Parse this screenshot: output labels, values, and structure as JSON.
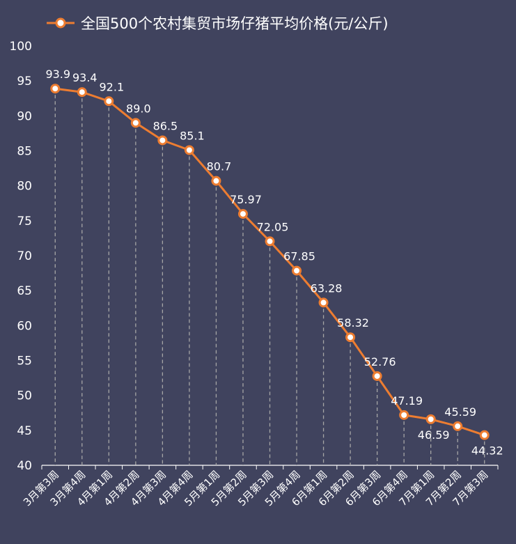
{
  "chart_data": {
    "type": "line",
    "title": "",
    "xlabel": "",
    "ylabel": "",
    "ylim": [
      40,
      100
    ],
    "yticks": [
      40,
      45,
      50,
      55,
      60,
      65,
      70,
      75,
      80,
      85,
      90,
      95,
      100
    ],
    "grid": false,
    "drop_lines": true,
    "legend_position": "top-center",
    "categories": [
      "3月第3周",
      "3月第4周",
      "4月第1周",
      "4月第2周",
      "4月第3周",
      "4月第4周",
      "5月第1周",
      "5月第2周",
      "5月第3周",
      "5月第4周",
      "6月第1周",
      "6月第2周",
      "6月第3周",
      "6月第4周",
      "7月第1周",
      "7月第2周",
      "7月第3周"
    ],
    "series": [
      {
        "name": "全国500个农村集贸市场仔猪平均价格(元/公斤)",
        "values": [
          93.9,
          93.4,
          92.1,
          89.0,
          86.5,
          85.1,
          80.7,
          75.97,
          72.05,
          67.85,
          63.28,
          58.32,
          52.76,
          47.19,
          46.59,
          45.59,
          44.32
        ],
        "labels": [
          "93.9",
          "93.4",
          "92.1",
          "89.0",
          "86.5",
          "85.1",
          "80.7",
          "75.97",
          "72.05",
          "67.85",
          "63.28",
          "58.32",
          "52.76",
          "47.19",
          "46.59",
          "45.59",
          "44.32"
        ],
        "label_below": [
          false,
          false,
          false,
          false,
          false,
          false,
          false,
          false,
          false,
          false,
          false,
          false,
          false,
          false,
          true,
          false,
          true
        ],
        "color": "#ed7d31"
      }
    ],
    "colors": {
      "background": "#40435e",
      "line": "#ed7d31",
      "marker_fill": "#ffffff",
      "text": "#ffffff",
      "axis": "#ffffff",
      "drop_line": "#a6a6a6"
    }
  }
}
